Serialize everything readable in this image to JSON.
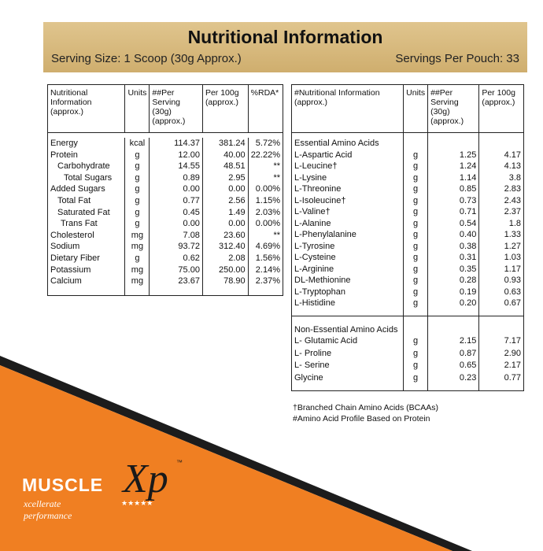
{
  "header": {
    "title": "Nutritional Information",
    "serving_size": "Serving Size: 1 Scoop (30g Approx.)",
    "servings_per_pouch": "Servings Per Pouch: 33"
  },
  "left_table": {
    "columns": [
      "Nutritional Information (approx.)",
      "Units",
      "##Per Serving (30g) (approx.)",
      "Per 100g (approx.)",
      "%RDA*"
    ],
    "rows": [
      [
        "Energy",
        "kcal",
        "114.37",
        "381.24",
        "5.72%"
      ],
      [
        "Protein",
        "g",
        "12.00",
        "40.00",
        "22.22%"
      ],
      [
        "Carbohydrate",
        "g",
        "14.55",
        "48.51",
        "**"
      ],
      [
        "Total Sugars",
        "g",
        "0.89",
        "2.95",
        "**"
      ],
      [
        "Added Sugars",
        "g",
        "0.00",
        "0.00",
        "0.00%"
      ],
      [
        "Total Fat",
        "g",
        "0.77",
        "2.56",
        "1.15%"
      ],
      [
        "Saturated Fat",
        "g",
        "0.45",
        "1.49",
        "2.03%"
      ],
      [
        "Trans Fat",
        "g",
        "0.00",
        "0.00",
        "0.00%"
      ],
      [
        "Cholesterol",
        "mg",
        "7.08",
        "23.60",
        "**"
      ],
      [
        "Sodium",
        "mg",
        "93.72",
        "312.40",
        "4.69%"
      ],
      [
        "Dietary Fiber",
        "g",
        "0.62",
        "2.08",
        "1.56%"
      ],
      [
        "Potassium",
        "mg",
        "75.00",
        "250.00",
        "2.14%"
      ],
      [
        "Calcium",
        "mg",
        "23.67",
        "78.90",
        "2.37%"
      ]
    ]
  },
  "right_table": {
    "columns": [
      "#Nutritional Information (approx.)",
      "Units",
      "##Per Serving (30g) (approx.)",
      "Per 100g (approx.)"
    ],
    "sections": [
      {
        "title": "Essential Amino Acids",
        "rows": [
          [
            "L-Aspartic Acid",
            "g",
            "1.25",
            "4.17"
          ],
          [
            "L-Leucine†",
            "g",
            "1.24",
            "4.13"
          ],
          [
            "L-Lysine",
            "g",
            "1.14",
            "3.8"
          ],
          [
            "L-Threonine",
            "g",
            "0.85",
            "2.83"
          ],
          [
            "L-Isoleucine†",
            "g",
            "0.73",
            "2.43"
          ],
          [
            "L-Valine†",
            "g",
            "0.71",
            "2.37"
          ],
          [
            "L-Alanine",
            "g",
            "0.54",
            "1.8"
          ],
          [
            "L-Phenylalanine",
            "g",
            "0.40",
            "1.33"
          ],
          [
            "L-Tyrosine",
            "g",
            "0.38",
            "1.27"
          ],
          [
            "L-Cysteine",
            "g",
            "0.31",
            "1.03"
          ],
          [
            "L-Arginine",
            "g",
            "0.35",
            "1.17"
          ],
          [
            "DL-Methionine",
            "g",
            "0.28",
            "0.93"
          ],
          [
            "L-Tryptophan",
            "g",
            "0.19",
            "0.63"
          ],
          [
            "L-Histidine",
            "g",
            "0.20",
            "0.67"
          ]
        ]
      },
      {
        "title": "Non-Essential Amino Acids",
        "rows": [
          [
            "L- Glutamic Acid",
            "g",
            "2.15",
            "7.17"
          ],
          [
            "L- Proline",
            "g",
            "0.87",
            "2.90"
          ],
          [
            "L- Serine",
            "g",
            "0.65",
            "2.17"
          ],
          [
            "Glycine",
            "g",
            "0.23",
            "0.77"
          ]
        ]
      }
    ]
  },
  "footnotes": [
    "†Branched Chain Amino Acids (BCAAs)",
    "#Amino Acid Profile Based on Protein"
  ],
  "brand": {
    "name": "MUSCLE",
    "mark": "Xp",
    "tm": "™",
    "tagline": "xcellerate performance",
    "stars": "★★★★★"
  }
}
